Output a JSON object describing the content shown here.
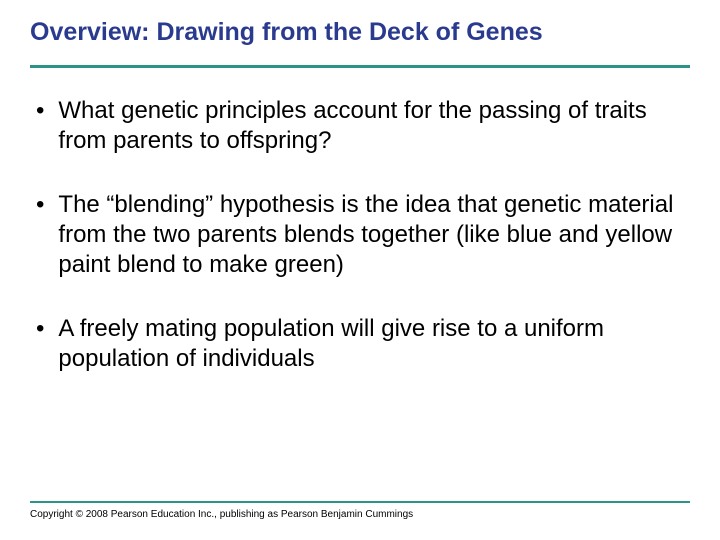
{
  "slide": {
    "title": "Overview: Drawing from the Deck of Genes",
    "title_color": "#2a3b8f",
    "title_fontsize": 25,
    "title_fontweight": "bold",
    "rule_color": "#2b9486",
    "background_color": "#ffffff",
    "body_color": "#000000",
    "body_fontsize": 24,
    "bullets": [
      "What genetic principles account for the passing of traits from parents to offspring?",
      "The “blending” hypothesis is the idea that genetic material from the two parents blends together (like blue and yellow paint blend to make green)",
      "A freely mating population will give rise to a uniform population of individuals"
    ],
    "copyright": "Copyright © 2008 Pearson Education Inc., publishing as Pearson Benjamin Cummings",
    "copyright_fontsize": 10
  }
}
